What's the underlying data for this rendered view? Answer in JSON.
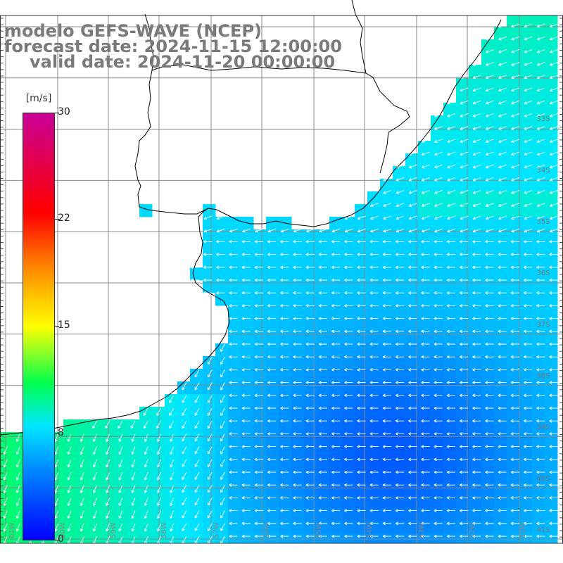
{
  "header": {
    "model_line": "modelo GEFS-WAVE (NCEP)",
    "forecast_line": "forecast date: 2024-11-15 12:00:00",
    "valid_line": "valid date: 2024-11-20 00:00:00"
  },
  "colorbar": {
    "unit": "[m/s]",
    "ticks": [
      "30",
      "22",
      "15",
      "8",
      "0"
    ],
    "min": 0,
    "max": 30
  },
  "lat_labels": [
    "33S",
    "34S",
    "35S",
    "36S",
    "37S",
    "38S",
    "39S",
    "40S",
    "41S"
  ],
  "lon_labels": [
    "61W",
    "60W",
    "59W",
    "58W",
    "57W",
    "56W",
    "55W",
    "54W",
    "53W",
    "52W",
    "51W"
  ],
  "colors": {
    "land": "#ffffff",
    "grid": "#888888",
    "coast": "#000000",
    "title": "#7a7a7a",
    "arrow": "#ffffff"
  },
  "wind": {
    "direction": "from east/northeast, turning to northeast near southern Brazil coast",
    "field": "wind speed (m/s) colour-shaded over ocean"
  }
}
